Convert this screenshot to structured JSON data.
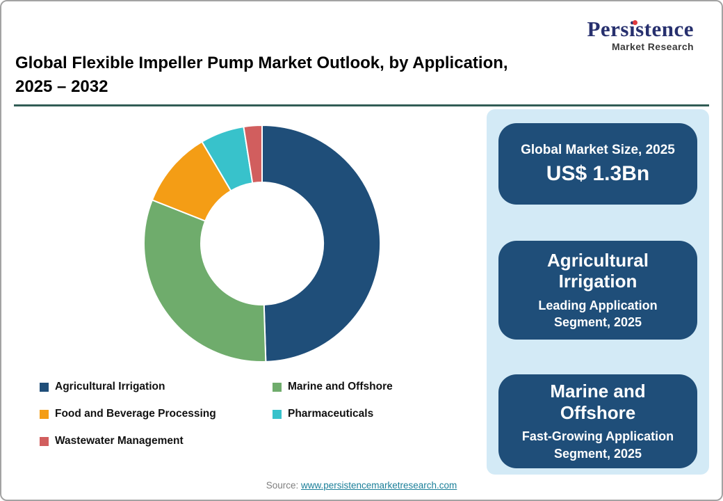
{
  "logo": {
    "brand": "Persistence",
    "subtitle": "Market Research"
  },
  "title": {
    "line1": "Global Flexible Impeller Pump Market Outlook, by Application,",
    "line2": "2025 – 2032"
  },
  "chart_data": {
    "type": "pie",
    "subtype": "donut",
    "title": "Global Flexible Impeller Pump Market Outlook, by Application, 2025 – 2032",
    "unit": "percent share (estimated from slice angles, no labels shown)",
    "start_angle_deg": 0,
    "direction": "clockwise",
    "legend_position": "bottom-left",
    "segments": [
      {
        "label": "Agricultural Irrigation",
        "value": 49.5,
        "color": "#1F4E79"
      },
      {
        "label": "Marine and Offshore",
        "value": 31.5,
        "color": "#6FAC6C"
      },
      {
        "label": "Food and Beverage Processing",
        "value": 10.5,
        "color": "#F49D15"
      },
      {
        "label": "Pharmaceuticals",
        "value": 6.0,
        "color": "#38C2CB"
      },
      {
        "label": "Wastewater Management",
        "value": 2.5,
        "color": "#D15E5E"
      }
    ]
  },
  "panel": {
    "cards": [
      {
        "title": "Global Market Size, 2025",
        "value": "US$ 1.3Bn"
      },
      {
        "title": "Agricultural Irrigation",
        "subtitle": "Leading Application Segment, 2025"
      },
      {
        "title": "Marine and Offshore",
        "subtitle": "Fast-Growing Application Segment, 2025"
      }
    ]
  },
  "footer": {
    "source_label": "Source: ",
    "source_link": "www.persistencemarketresearch.com"
  },
  "colors": {
    "frame_border": "#A3A3A3",
    "accent_line": "#315C55",
    "panel_bg": "#D3EAF6",
    "card_bg": "#1F4E79",
    "link": "#1B7F99",
    "logo_navy": "#27306E",
    "logo_red": "#E03A3E"
  }
}
